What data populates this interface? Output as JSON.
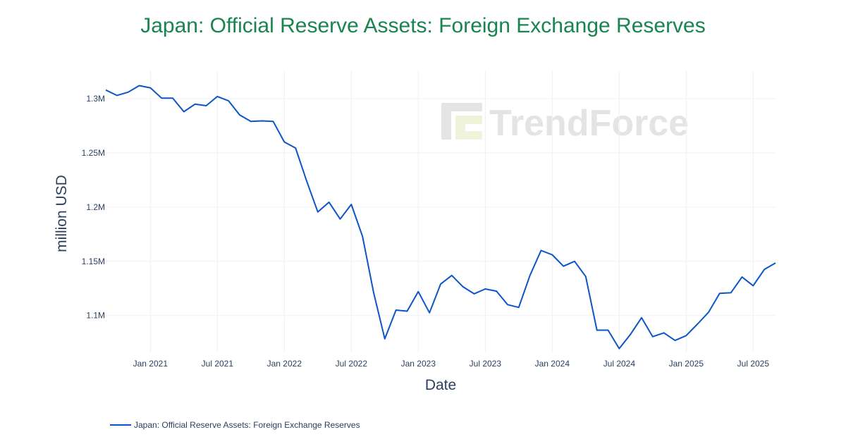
{
  "chart_data": {
    "type": "line",
    "title": "Japan: Official Reserve Assets: Foreign Exchange Reserves",
    "xlabel": "Date",
    "ylabel": "million USD",
    "x_ticks": [
      "Jan 2021",
      "Jul 2021",
      "Jan 2022",
      "Jul 2022",
      "Jan 2023",
      "Jul 2023",
      "Jan 2024",
      "Jul 2024",
      "Jan 2025",
      "Jul 2025"
    ],
    "y_ticks": [
      {
        "value": 1100000,
        "label": "1.1M"
      },
      {
        "value": 1150000,
        "label": "1.15M"
      },
      {
        "value": 1200000,
        "label": "1.2M"
      },
      {
        "value": 1250000,
        "label": "1.25M"
      },
      {
        "value": 1300000,
        "label": "1.3M"
      }
    ],
    "xlim": [
      "2020-09",
      "2025-09"
    ],
    "ylim": [
      1066000,
      1326000
    ],
    "grid": true,
    "legend_position": "bottom-left",
    "watermark": "TrendForce",
    "colors": {
      "line": "#0b55c8",
      "title": "#1a8450",
      "grid": "#eef0f4",
      "text": "#2a3f5f"
    },
    "series": [
      {
        "name": "Japan: Official Reserve Assets: Foreign Exchange Reserves",
        "x": [
          "2020-09",
          "2020-10",
          "2020-11",
          "2020-12",
          "2021-01",
          "2021-02",
          "2021-03",
          "2021-04",
          "2021-05",
          "2021-06",
          "2021-07",
          "2021-08",
          "2021-09",
          "2021-10",
          "2021-11",
          "2021-12",
          "2022-01",
          "2022-02",
          "2022-03",
          "2022-04",
          "2022-05",
          "2022-06",
          "2022-07",
          "2022-08",
          "2022-09",
          "2022-10",
          "2022-11",
          "2022-12",
          "2023-01",
          "2023-02",
          "2023-03",
          "2023-04",
          "2023-05",
          "2023-06",
          "2023-07",
          "2023-08",
          "2023-09",
          "2023-10",
          "2023-11",
          "2023-12",
          "2024-01",
          "2024-02",
          "2024-03",
          "2024-04",
          "2024-05",
          "2024-06",
          "2024-07",
          "2024-08",
          "2024-09",
          "2024-10",
          "2024-11",
          "2024-12",
          "2025-01",
          "2025-02",
          "2025-03",
          "2025-04",
          "2025-05",
          "2025-06",
          "2025-07",
          "2025-08",
          "2025-09"
        ],
        "values": [
          1308000,
          1303000,
          1306000,
          1312000,
          1310000,
          1300500,
          1300500,
          1288000,
          1295000,
          1293500,
          1302000,
          1298000,
          1285000,
          1279000,
          1279500,
          1279000,
          1260000,
          1254500,
          1224000,
          1195500,
          1204500,
          1189000,
          1202500,
          1173000,
          1121000,
          1078500,
          1105000,
          1104000,
          1122000,
          1102500,
          1129000,
          1137000,
          1126500,
          1120000,
          1124500,
          1122500,
          1110000,
          1107500,
          1137000,
          1160000,
          1156000,
          1145500,
          1150000,
          1136000,
          1086500,
          1086500,
          1069500,
          1082500,
          1098000,
          1080500,
          1084000,
          1077000,
          1081500,
          1092000,
          1103000,
          1120500,
          1121000,
          1135500,
          1127500,
          1142500,
          1148500
        ]
      }
    ]
  }
}
